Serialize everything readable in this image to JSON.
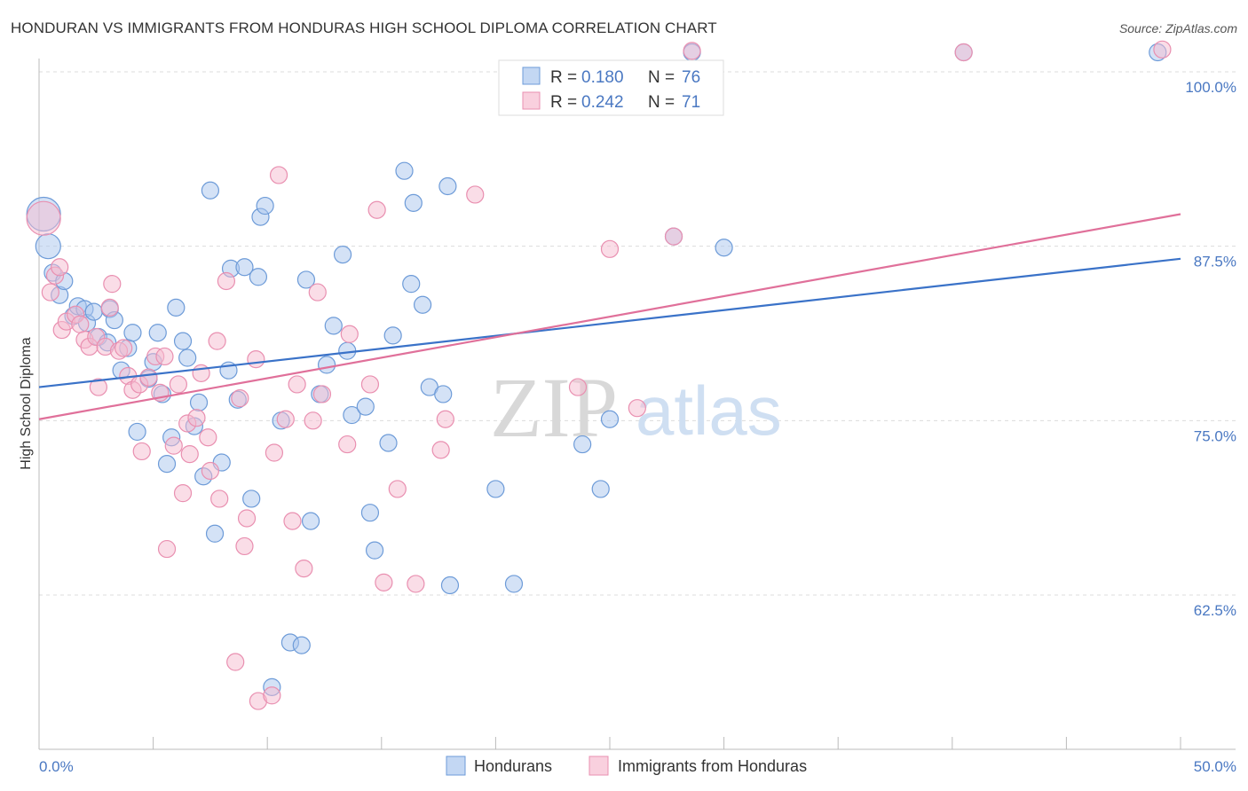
{
  "header": {
    "title": "HONDURAN VS IMMIGRANTS FROM HONDURAS HIGH SCHOOL DIPLOMA CORRELATION CHART",
    "source": "Source: ZipAtlas.com"
  },
  "watermark": {
    "zip": "ZIP",
    "atlas": "atlas"
  },
  "colors": {
    "blue_fill": "#a9c6ee",
    "blue_stroke": "#6d9bd8",
    "blue_line": "#3a72c8",
    "pink_fill": "#f6bcd0",
    "pink_stroke": "#e98fb0",
    "pink_line": "#e0709a",
    "tick_text": "#4a78c2"
  },
  "chart_data": {
    "type": "scatter",
    "title": "HONDURAN VS IMMIGRANTS FROM HONDURAS HIGH SCHOOL DIPLOMA CORRELATION CHART",
    "xlabel": "",
    "ylabel": "High School Diploma",
    "xlim": [
      0,
      50
    ],
    "ylim": [
      51.5,
      102
    ],
    "x_tick_labels": [
      {
        "value": 0,
        "label": "0.0%"
      },
      {
        "value": 50,
        "label": "50.0%"
      }
    ],
    "y_tick_labels": [
      {
        "value": 100,
        "label": "100.0%"
      },
      {
        "value": 87.5,
        "label": "87.5%"
      },
      {
        "value": 75,
        "label": "75.0%"
      },
      {
        "value": 62.5,
        "label": "62.5%"
      }
    ],
    "x_minor_ticks": [
      0,
      5,
      10,
      15,
      20,
      25,
      30,
      35,
      40,
      45,
      50
    ],
    "legend": [
      {
        "r_label": "R =",
        "r_value": "0.180",
        "n_label": "N =",
        "n_value": "76"
      },
      {
        "r_label": "R =",
        "r_value": "0.242",
        "n_label": "N =",
        "n_value": "71"
      }
    ],
    "series": [
      {
        "name": "Hondurans",
        "color": "#a9c6ee",
        "trend": {
          "x": [
            0,
            50
          ],
          "y": [
            77.4,
            86.6
          ]
        },
        "points": [
          {
            "x": 0.2,
            "y": 89.8,
            "s": 3
          },
          {
            "x": 0.4,
            "y": 87.5,
            "s": 2
          },
          {
            "x": 0.6,
            "y": 85.6,
            "s": 1
          },
          {
            "x": 0.9,
            "y": 84.0,
            "s": 1
          },
          {
            "x": 1.1,
            "y": 85.0,
            "s": 1
          },
          {
            "x": 1.5,
            "y": 82.5,
            "s": 1
          },
          {
            "x": 1.7,
            "y": 83.2,
            "s": 1
          },
          {
            "x": 2.0,
            "y": 83.0,
            "s": 1
          },
          {
            "x": 2.1,
            "y": 82.0,
            "s": 1
          },
          {
            "x": 2.4,
            "y": 82.8,
            "s": 1
          },
          {
            "x": 2.6,
            "y": 81.0,
            "s": 1
          },
          {
            "x": 3.0,
            "y": 80.6,
            "s": 1
          },
          {
            "x": 3.1,
            "y": 83.0,
            "s": 1
          },
          {
            "x": 3.3,
            "y": 82.2,
            "s": 1
          },
          {
            "x": 3.6,
            "y": 78.6,
            "s": 1
          },
          {
            "x": 3.9,
            "y": 80.2,
            "s": 1
          },
          {
            "x": 4.1,
            "y": 81.3,
            "s": 1
          },
          {
            "x": 4.3,
            "y": 74.2,
            "s": 1
          },
          {
            "x": 4.8,
            "y": 78.0,
            "s": 1
          },
          {
            "x": 5.0,
            "y": 79.2,
            "s": 1
          },
          {
            "x": 5.2,
            "y": 81.3,
            "s": 1
          },
          {
            "x": 5.4,
            "y": 76.9,
            "s": 1
          },
          {
            "x": 5.6,
            "y": 71.9,
            "s": 1
          },
          {
            "x": 5.8,
            "y": 73.8,
            "s": 1
          },
          {
            "x": 6.0,
            "y": 83.1,
            "s": 1
          },
          {
            "x": 6.3,
            "y": 80.7,
            "s": 1
          },
          {
            "x": 6.5,
            "y": 79.5,
            "s": 1
          },
          {
            "x": 6.8,
            "y": 74.6,
            "s": 1
          },
          {
            "x": 7.0,
            "y": 76.3,
            "s": 1
          },
          {
            "x": 7.2,
            "y": 71.0,
            "s": 1
          },
          {
            "x": 7.5,
            "y": 91.5,
            "s": 1
          },
          {
            "x": 7.7,
            "y": 66.9,
            "s": 1
          },
          {
            "x": 8.0,
            "y": 72.0,
            "s": 1
          },
          {
            "x": 8.3,
            "y": 78.6,
            "s": 1
          },
          {
            "x": 8.4,
            "y": 85.9,
            "s": 1
          },
          {
            "x": 8.7,
            "y": 76.5,
            "s": 1
          },
          {
            "x": 9.0,
            "y": 86.0,
            "s": 1
          },
          {
            "x": 9.3,
            "y": 69.4,
            "s": 1
          },
          {
            "x": 9.6,
            "y": 85.3,
            "s": 1
          },
          {
            "x": 9.7,
            "y": 89.6,
            "s": 1
          },
          {
            "x": 9.9,
            "y": 90.4,
            "s": 1
          },
          {
            "x": 10.6,
            "y": 75.0,
            "s": 1
          },
          {
            "x": 11.0,
            "y": 59.1,
            "s": 1
          },
          {
            "x": 10.2,
            "y": 55.9,
            "s": 1
          },
          {
            "x": 11.5,
            "y": 58.9,
            "s": 1
          },
          {
            "x": 11.7,
            "y": 85.1,
            "s": 1
          },
          {
            "x": 11.9,
            "y": 67.8,
            "s": 1
          },
          {
            "x": 12.3,
            "y": 76.9,
            "s": 1
          },
          {
            "x": 12.6,
            "y": 79.0,
            "s": 1
          },
          {
            "x": 12.9,
            "y": 81.8,
            "s": 1
          },
          {
            "x": 13.3,
            "y": 86.9,
            "s": 1
          },
          {
            "x": 13.5,
            "y": 80.0,
            "s": 1
          },
          {
            "x": 13.7,
            "y": 75.4,
            "s": 1
          },
          {
            "x": 14.3,
            "y": 76.0,
            "s": 1
          },
          {
            "x": 14.5,
            "y": 68.4,
            "s": 1
          },
          {
            "x": 14.7,
            "y": 65.7,
            "s": 1
          },
          {
            "x": 15.3,
            "y": 73.4,
            "s": 1
          },
          {
            "x": 15.5,
            "y": 81.1,
            "s": 1
          },
          {
            "x": 16.0,
            "y": 92.9,
            "s": 1
          },
          {
            "x": 16.3,
            "y": 84.8,
            "s": 1
          },
          {
            "x": 16.8,
            "y": 83.3,
            "s": 1
          },
          {
            "x": 17.1,
            "y": 77.4,
            "s": 1
          },
          {
            "x": 16.4,
            "y": 90.6,
            "s": 1
          },
          {
            "x": 17.7,
            "y": 76.9,
            "s": 1
          },
          {
            "x": 17.9,
            "y": 91.8,
            "s": 1
          },
          {
            "x": 18.0,
            "y": 63.2,
            "s": 1
          },
          {
            "x": 20.0,
            "y": 70.1,
            "s": 1
          },
          {
            "x": 20.8,
            "y": 63.3,
            "s": 1
          },
          {
            "x": 23.8,
            "y": 73.3,
            "s": 1
          },
          {
            "x": 24.6,
            "y": 70.1,
            "s": 1
          },
          {
            "x": 25.0,
            "y": 75.1,
            "s": 1
          },
          {
            "x": 27.8,
            "y": 88.2,
            "s": 1
          },
          {
            "x": 30.0,
            "y": 87.4,
            "s": 1
          },
          {
            "x": 28.6,
            "y": 101.4,
            "s": 1
          },
          {
            "x": 40.5,
            "y": 101.4,
            "s": 1
          },
          {
            "x": 49.0,
            "y": 101.4,
            "s": 1
          }
        ]
      },
      {
        "name": "Immigrants from Honduras",
        "color": "#f6bcd0",
        "trend": {
          "x": [
            0,
            50
          ],
          "y": [
            75.1,
            89.8
          ]
        },
        "points": [
          {
            "x": 0.2,
            "y": 89.5,
            "s": 3
          },
          {
            "x": 0.5,
            "y": 84.2,
            "s": 1
          },
          {
            "x": 0.7,
            "y": 85.4,
            "s": 1
          },
          {
            "x": 0.9,
            "y": 86.0,
            "s": 1
          },
          {
            "x": 1.0,
            "y": 81.5,
            "s": 1
          },
          {
            "x": 1.2,
            "y": 82.1,
            "s": 1
          },
          {
            "x": 1.6,
            "y": 82.6,
            "s": 1
          },
          {
            "x": 1.8,
            "y": 81.9,
            "s": 1
          },
          {
            "x": 2.0,
            "y": 80.8,
            "s": 1
          },
          {
            "x": 2.2,
            "y": 80.3,
            "s": 1
          },
          {
            "x": 2.5,
            "y": 81.0,
            "s": 1
          },
          {
            "x": 2.6,
            "y": 77.4,
            "s": 1
          },
          {
            "x": 2.9,
            "y": 80.3,
            "s": 1
          },
          {
            "x": 3.1,
            "y": 83.1,
            "s": 1
          },
          {
            "x": 3.2,
            "y": 84.8,
            "s": 1
          },
          {
            "x": 3.5,
            "y": 80.0,
            "s": 1
          },
          {
            "x": 3.7,
            "y": 80.2,
            "s": 1
          },
          {
            "x": 3.9,
            "y": 78.2,
            "s": 1
          },
          {
            "x": 4.1,
            "y": 77.2,
            "s": 1
          },
          {
            "x": 4.4,
            "y": 77.6,
            "s": 1
          },
          {
            "x": 4.5,
            "y": 72.8,
            "s": 1
          },
          {
            "x": 4.8,
            "y": 78.1,
            "s": 1
          },
          {
            "x": 5.1,
            "y": 79.6,
            "s": 1
          },
          {
            "x": 5.3,
            "y": 77.0,
            "s": 1
          },
          {
            "x": 5.5,
            "y": 79.6,
            "s": 1
          },
          {
            "x": 5.6,
            "y": 65.8,
            "s": 1
          },
          {
            "x": 5.9,
            "y": 73.2,
            "s": 1
          },
          {
            "x": 6.1,
            "y": 77.6,
            "s": 1
          },
          {
            "x": 6.3,
            "y": 69.8,
            "s": 1
          },
          {
            "x": 6.5,
            "y": 74.8,
            "s": 1
          },
          {
            "x": 6.6,
            "y": 72.6,
            "s": 1
          },
          {
            "x": 6.9,
            "y": 75.2,
            "s": 1
          },
          {
            "x": 7.1,
            "y": 78.4,
            "s": 1
          },
          {
            "x": 7.4,
            "y": 73.8,
            "s": 1
          },
          {
            "x": 7.5,
            "y": 71.4,
            "s": 1
          },
          {
            "x": 7.8,
            "y": 80.7,
            "s": 1
          },
          {
            "x": 7.9,
            "y": 69.4,
            "s": 1
          },
          {
            "x": 8.2,
            "y": 85.0,
            "s": 1
          },
          {
            "x": 8.6,
            "y": 57.7,
            "s": 1
          },
          {
            "x": 8.8,
            "y": 76.6,
            "s": 1
          },
          {
            "x": 9.0,
            "y": 66.0,
            "s": 1
          },
          {
            "x": 9.1,
            "y": 68.0,
            "s": 1
          },
          {
            "x": 9.6,
            "y": 54.9,
            "s": 1
          },
          {
            "x": 9.5,
            "y": 79.4,
            "s": 1
          },
          {
            "x": 10.2,
            "y": 55.3,
            "s": 1
          },
          {
            "x": 10.3,
            "y": 72.7,
            "s": 1
          },
          {
            "x": 10.5,
            "y": 92.6,
            "s": 1
          },
          {
            "x": 10.8,
            "y": 75.1,
            "s": 1
          },
          {
            "x": 11.1,
            "y": 67.8,
            "s": 1
          },
          {
            "x": 11.3,
            "y": 77.6,
            "s": 1
          },
          {
            "x": 11.6,
            "y": 64.4,
            "s": 1
          },
          {
            "x": 12.0,
            "y": 75.0,
            "s": 1
          },
          {
            "x": 12.2,
            "y": 84.2,
            "s": 1
          },
          {
            "x": 12.4,
            "y": 76.9,
            "s": 1
          },
          {
            "x": 13.6,
            "y": 81.2,
            "s": 1
          },
          {
            "x": 13.5,
            "y": 73.3,
            "s": 1
          },
          {
            "x": 14.5,
            "y": 77.6,
            "s": 1
          },
          {
            "x": 14.8,
            "y": 90.1,
            "s": 1
          },
          {
            "x": 15.1,
            "y": 63.4,
            "s": 1
          },
          {
            "x": 15.7,
            "y": 70.1,
            "s": 1
          },
          {
            "x": 16.5,
            "y": 63.3,
            "s": 1
          },
          {
            "x": 17.6,
            "y": 72.9,
            "s": 1
          },
          {
            "x": 17.8,
            "y": 75.1,
            "s": 1
          },
          {
            "x": 19.1,
            "y": 91.2,
            "s": 1
          },
          {
            "x": 23.6,
            "y": 77.4,
            "s": 1
          },
          {
            "x": 25.0,
            "y": 87.3,
            "s": 1
          },
          {
            "x": 26.2,
            "y": 75.9,
            "s": 1
          },
          {
            "x": 27.8,
            "y": 88.2,
            "s": 1
          },
          {
            "x": 28.6,
            "y": 101.5,
            "s": 1
          },
          {
            "x": 40.5,
            "y": 101.4,
            "s": 1
          },
          {
            "x": 49.2,
            "y": 101.6,
            "s": 1
          }
        ]
      }
    ]
  }
}
